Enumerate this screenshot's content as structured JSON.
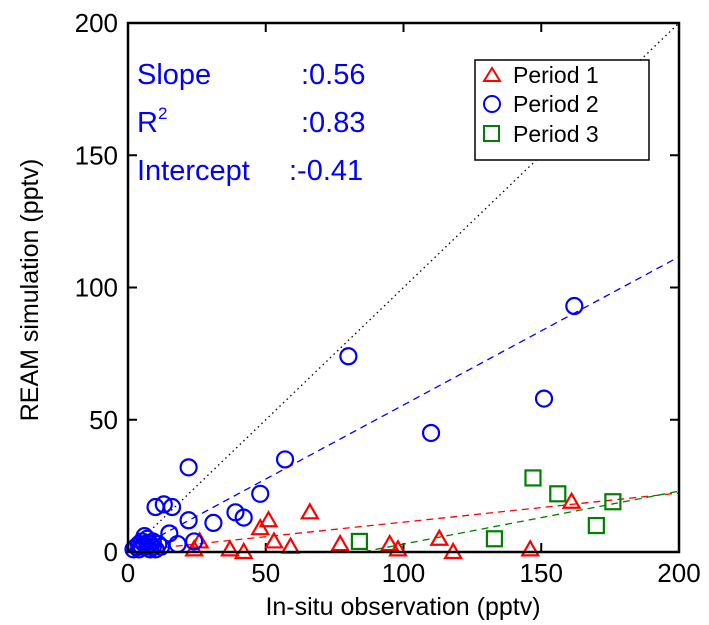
{
  "chart_data": {
    "type": "scatter",
    "xlabel": "In-situ observation (pptv)",
    "ylabel": "REAM simulation (pptv)",
    "xlim": [
      0,
      200
    ],
    "ylim": [
      0,
      200
    ],
    "xticks": [
      "0",
      "50",
      "100",
      "150",
      "200"
    ],
    "yticks": [
      "0",
      "50",
      "100",
      "150",
      "200"
    ],
    "stats": {
      "slope_label": "Slope",
      "slope_value": ":0.56",
      "r2_label": "R",
      "r2_sup": "2",
      "r2_value": ":0.83",
      "intercept_label": "Intercept",
      "intercept_value": ":-0.41",
      "color": "#0000ff"
    },
    "legend_position": "top-right",
    "series": [
      {
        "name": "Period 1",
        "marker": "triangle",
        "color": "#ff0000",
        "points": [
          [
            24,
            1
          ],
          [
            26,
            4
          ],
          [
            37,
            1
          ],
          [
            42,
            0
          ],
          [
            48,
            9
          ],
          [
            51,
            12
          ],
          [
            53,
            4
          ],
          [
            59,
            2
          ],
          [
            66,
            15
          ],
          [
            77,
            3
          ],
          [
            95,
            3
          ],
          [
            98,
            1
          ],
          [
            113,
            5
          ],
          [
            118,
            0
          ],
          [
            146,
            1
          ],
          [
            161,
            19
          ]
        ],
        "fit_line": {
          "slope": 0.11,
          "intercept": 0.3
        }
      },
      {
        "name": "Period 2",
        "marker": "circle",
        "color": "#0000ff",
        "points": [
          [
            2,
            1
          ],
          [
            3,
            2
          ],
          [
            4,
            1
          ],
          [
            4,
            3
          ],
          [
            5,
            2
          ],
          [
            5,
            4
          ],
          [
            6,
            3
          ],
          [
            6,
            6
          ],
          [
            7,
            5
          ],
          [
            7,
            2
          ],
          [
            8,
            3
          ],
          [
            8,
            1
          ],
          [
            9,
            4
          ],
          [
            9,
            2
          ],
          [
            10,
            17
          ],
          [
            10,
            1
          ],
          [
            11,
            3
          ],
          [
            12,
            2
          ],
          [
            13,
            18
          ],
          [
            15,
            7
          ],
          [
            16,
            17
          ],
          [
            18,
            3
          ],
          [
            22,
            12
          ],
          [
            22,
            32
          ],
          [
            24,
            4
          ],
          [
            31,
            11
          ],
          [
            39,
            15
          ],
          [
            42,
            13
          ],
          [
            48,
            22
          ],
          [
            57,
            35
          ],
          [
            80,
            74
          ],
          [
            110,
            45
          ],
          [
            151,
            58
          ],
          [
            162,
            93
          ]
        ],
        "fit_line": {
          "slope": 0.56,
          "intercept": -0.41
        }
      },
      {
        "name": "Period 3",
        "marker": "square",
        "color": "#008000",
        "points": [
          [
            84,
            4
          ],
          [
            133,
            5
          ],
          [
            147,
            28
          ],
          [
            156,
            22
          ],
          [
            170,
            10
          ],
          [
            176,
            19
          ]
        ],
        "fit_line": {
          "slope": 0.2,
          "intercept": -17
        }
      }
    ],
    "reference_line": {
      "slope": 1,
      "intercept": 0,
      "color": "#000000"
    }
  }
}
